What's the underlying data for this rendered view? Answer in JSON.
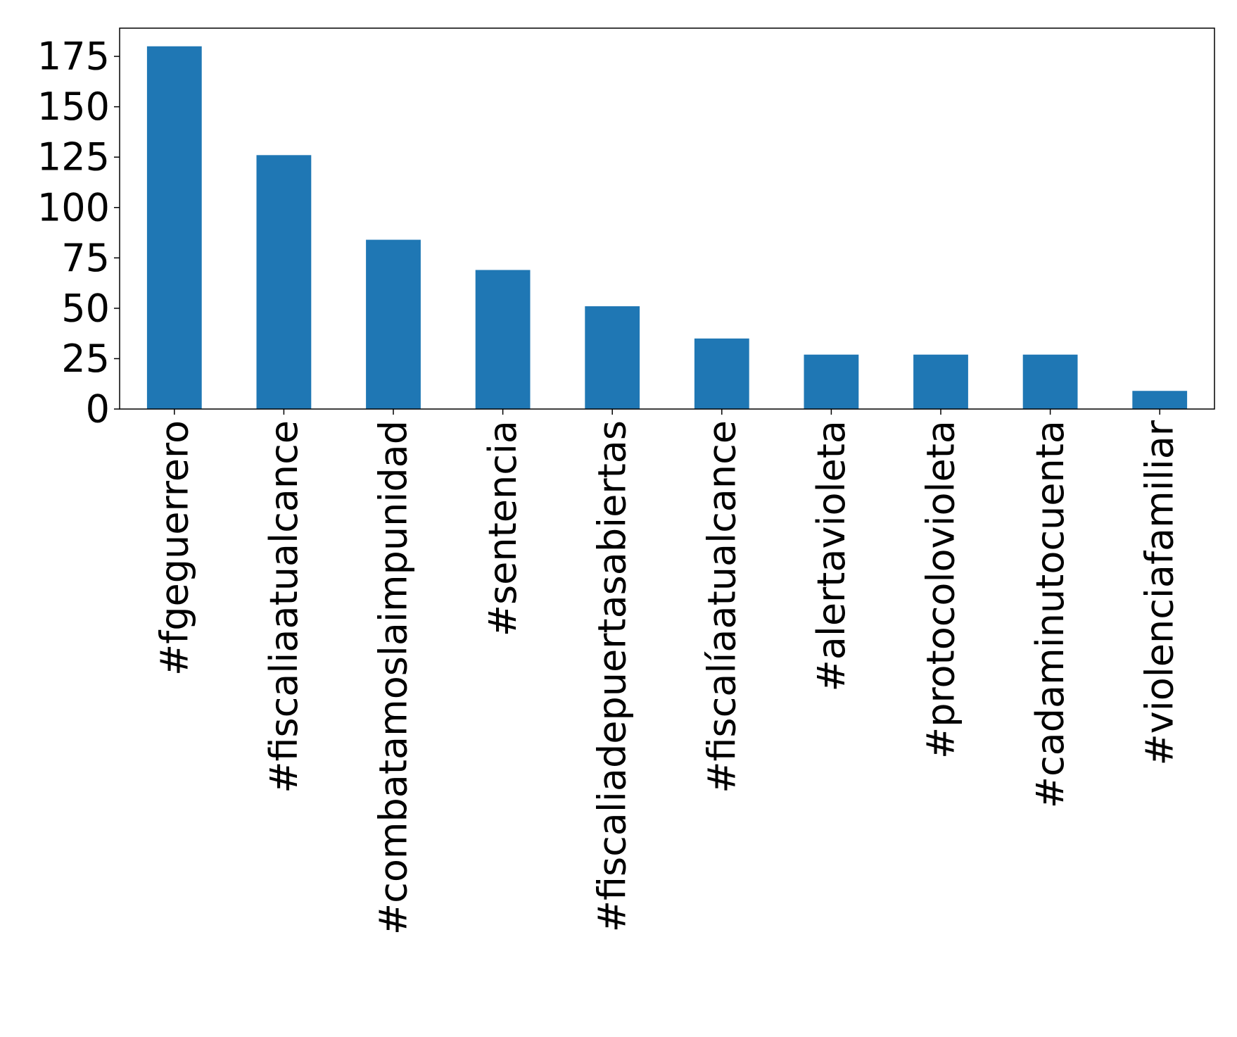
{
  "chart_data": {
    "type": "bar",
    "title": "",
    "xlabel": "",
    "ylabel": "",
    "categories": [
      "#fgeguerrero",
      "#fiscaliaatualcance",
      "#combatamoslaimpunidad",
      "#sentencia",
      "#fiscaliadepuertasabiertas",
      "#fiscalíaatualcance",
      "#alertavioleta",
      "#protocolovioleta",
      "#cadaminutocuenta",
      "#violenciafamiliar"
    ],
    "values": [
      180,
      126,
      84,
      69,
      51,
      35,
      27,
      27,
      27,
      9
    ],
    "ylim": [
      0,
      189
    ],
    "yticks": [
      0,
      25,
      50,
      75,
      100,
      125,
      150,
      175
    ],
    "grid": false,
    "legend": "none",
    "bar_color": "#1f77b4",
    "axis_color": "#000000"
  }
}
